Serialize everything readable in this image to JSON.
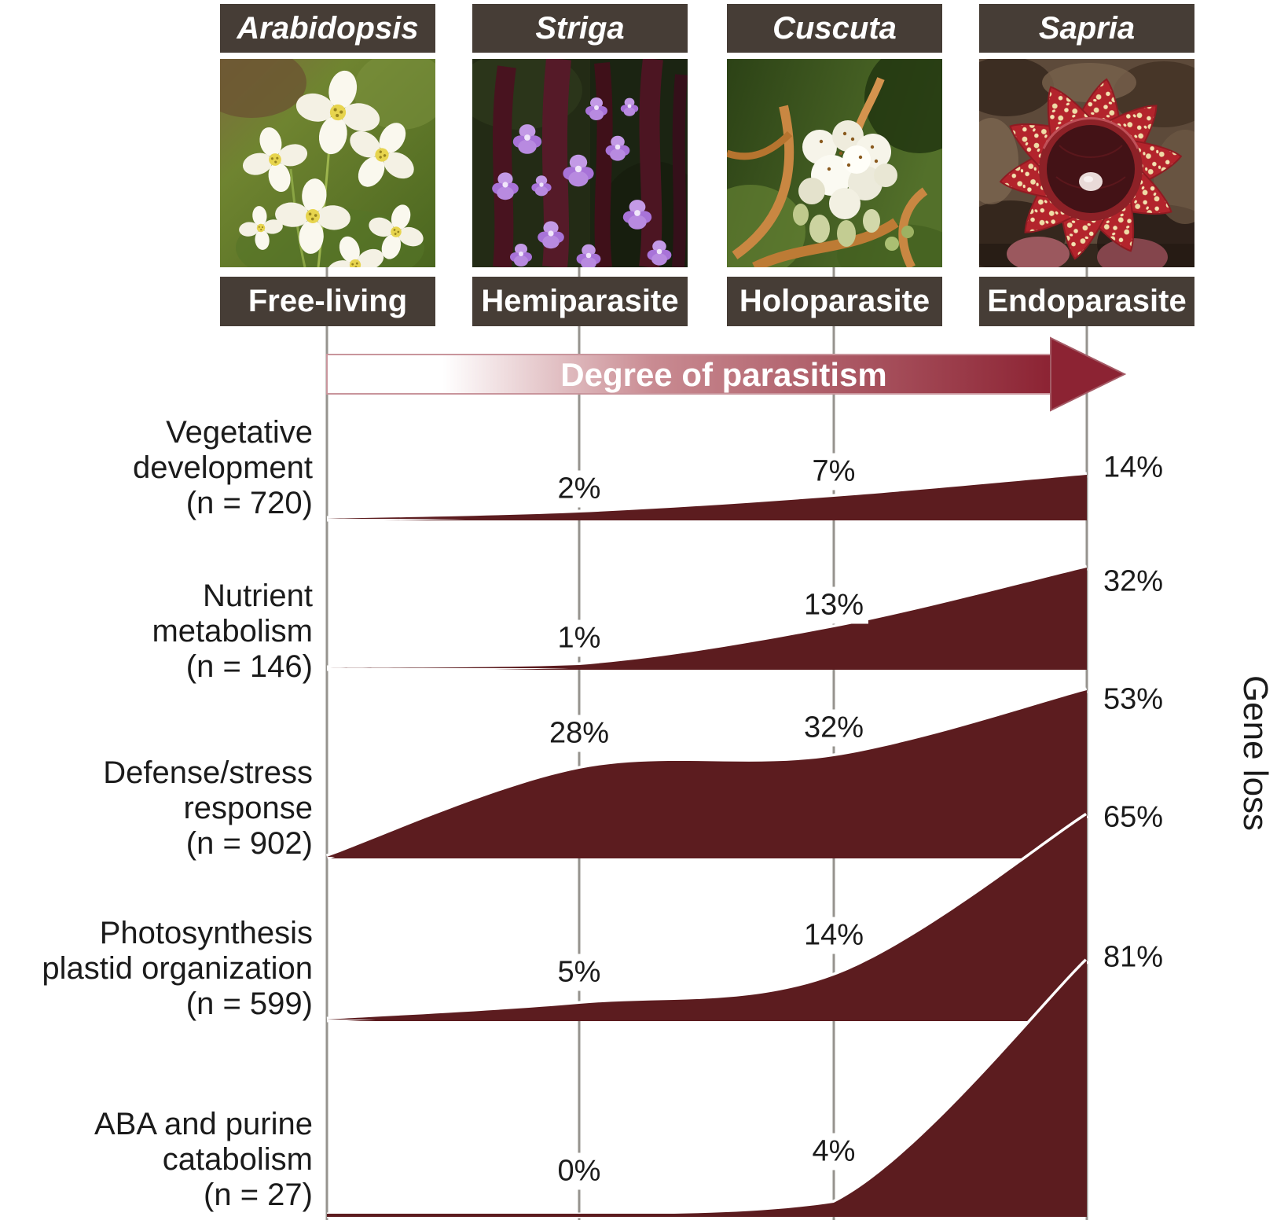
{
  "figure": {
    "arrow_label": "Degree of parasitism",
    "y_axis_label": "Gene loss"
  },
  "columns": [
    {
      "species": "Arabidopsis",
      "lifestyle": "Free-living"
    },
    {
      "species": "Striga",
      "lifestyle": "Hemiparasite"
    },
    {
      "species": "Cuscuta",
      "lifestyle": "Holoparasite"
    },
    {
      "species": "Sapria",
      "lifestyle": "Endoparasite"
    }
  ],
  "rows": [
    {
      "label_lines": [
        "Vegetative",
        "development",
        "(n = 720)"
      ],
      "pct": [
        "2%",
        "7%",
        "14%"
      ]
    },
    {
      "label_lines": [
        "Nutrient",
        "metabolism",
        "(n = 146)"
      ],
      "pct": [
        "1%",
        "13%",
        "32%"
      ]
    },
    {
      "label_lines": [
        "Defense/stress",
        "response",
        "(n = 902)"
      ],
      "pct": [
        "28%",
        "32%",
        "53%"
      ]
    },
    {
      "label_lines": [
        "Photosynthesis",
        "plastid organization",
        "(n = 599)"
      ],
      "pct": [
        "5%",
        "14%",
        "65%"
      ]
    },
    {
      "label_lines": [
        "ABA and purine",
        "catabolism",
        "(n = 27)"
      ],
      "pct": [
        "0%",
        "4%",
        "81%"
      ]
    }
  ],
  "chart_data": {
    "type": "area",
    "x_categories": [
      "Arabidopsis (Free-living)",
      "Striga (Hemiparasite)",
      "Cuscuta (Holoparasite)",
      "Sapria (Endoparasite)"
    ],
    "series": [
      {
        "name": "Vegetative development",
        "n": 720,
        "values": [
          0,
          2,
          7,
          14
        ]
      },
      {
        "name": "Nutrient metabolism",
        "n": 146,
        "values": [
          0,
          1,
          13,
          32
        ]
      },
      {
        "name": "Defense/stress response",
        "n": 902,
        "values": [
          0,
          28,
          32,
          53
        ]
      },
      {
        "name": "Photosynthesis plastid organization",
        "n": 599,
        "values": [
          0,
          5,
          14,
          65
        ]
      },
      {
        "name": "ABA and purine catabolism",
        "n": 27,
        "values": [
          0,
          0,
          4,
          81
        ]
      }
    ],
    "unit": "percent gene loss",
    "annotation": "Degree of parasitism",
    "ylabel": "Gene loss",
    "legend_position": "none",
    "grid": "column-guides-only",
    "colors": {
      "wedge": "#5c1c1f",
      "arrow_dark": "#8c2333",
      "box_bg": "#463d36",
      "grid_line": "#96938e"
    }
  }
}
